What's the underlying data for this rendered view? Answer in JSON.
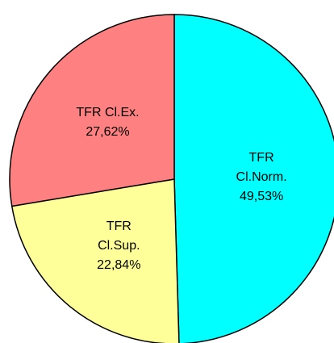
{
  "chart_data": {
    "type": "pie",
    "categories": [
      "TFR Cl.Norm.",
      "TFR Cl.Sup.",
      "TFR Cl.Ex."
    ],
    "values": [
      49.53,
      22.84,
      27.62
    ],
    "value_labels": [
      "49,53%",
      "22,84%",
      "27,62%"
    ],
    "colors": [
      "#00ffff",
      "#ffff99",
      "#ff8080"
    ]
  }
}
